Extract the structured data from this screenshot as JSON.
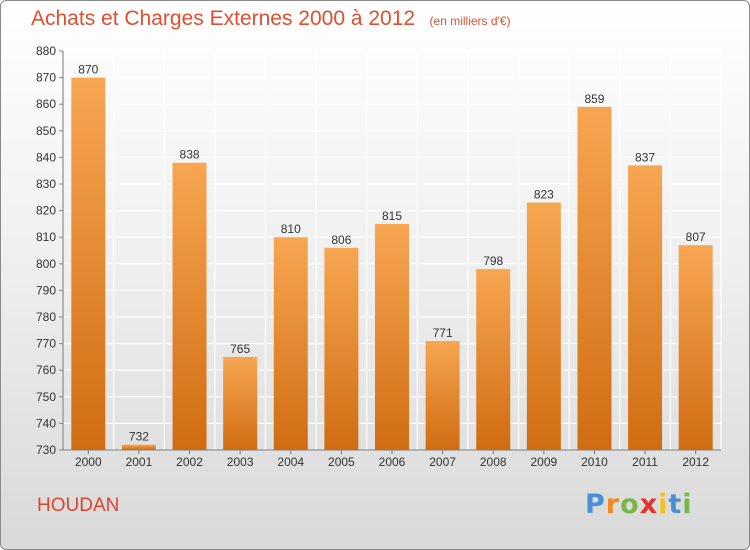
{
  "title": "Achats et Charges Externes 2000 à 2012",
  "unit_note": "(en milliers d'€)",
  "commune": "HOUDAN",
  "brand": {
    "letters": [
      "P",
      "r",
      "o",
      "x",
      "i",
      "t",
      "i"
    ],
    "colors": [
      "#4a8fd6",
      "#f28a1e",
      "#7ab648",
      "#e5322d",
      "#f2c21e",
      "#4a8fd6",
      "#7ab648"
    ]
  },
  "colors": {
    "bar_top": "#f7a652",
    "bar_bottom": "#d06c12",
    "text": "#e04e31",
    "grid": "#ffffff"
  },
  "chart_data": {
    "type": "bar",
    "categories": [
      "2000",
      "2001",
      "2002",
      "2003",
      "2004",
      "2005",
      "2006",
      "2007",
      "2008",
      "2009",
      "2010",
      "2011",
      "2012"
    ],
    "values": [
      870,
      732,
      838,
      765,
      810,
      806,
      815,
      771,
      798,
      823,
      859,
      837,
      807
    ],
    "ylim": [
      730,
      880
    ],
    "yticks": [
      730,
      740,
      750,
      760,
      770,
      780,
      790,
      800,
      810,
      820,
      830,
      840,
      850,
      860,
      870,
      880
    ],
    "grid": true
  }
}
